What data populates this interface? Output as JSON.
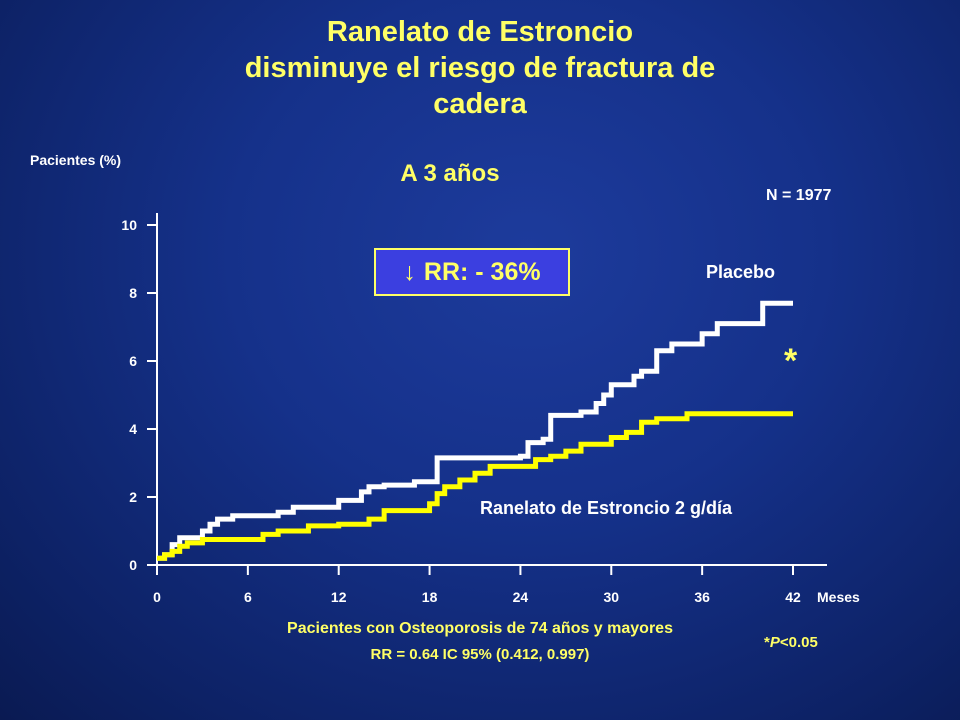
{
  "slide": {
    "title_lines": [
      "Ranelato de Estroncio",
      "disminuye el riesgo de fractura de",
      "cadera"
    ],
    "subtitle": "A 3 años",
    "n_label": "N = 1977",
    "rr_box": {
      "arrow": "↓",
      "text": "RR: - 36%"
    },
    "footer_line1": "Pacientes con Osteoporosis de 74 años y mayores",
    "footer_line2": "RR = 0.64   IC 95% (0.412, 0.997)",
    "pvalue_star": "*",
    "pvalue_p": "P",
    "pvalue_rest": "<0.05"
  },
  "chart_data": {
    "type": "line",
    "xlabel": "Meses",
    "ylabel": "Pacientes (%)",
    "xlim": [
      0,
      42
    ],
    "ylim": [
      0,
      10
    ],
    "xticks": [
      0,
      6,
      12,
      18,
      24,
      30,
      36,
      42
    ],
    "yticks": [
      0,
      2,
      4,
      6,
      8,
      10
    ],
    "significance_marker": "*",
    "colors": {
      "placebo": "#ffffff",
      "ranelato": "#ffff00",
      "text_yellow": "#ffff66"
    },
    "series": [
      {
        "name": "Placebo",
        "step": true,
        "x": [
          0,
          0.5,
          1,
          1.5,
          2,
          3,
          3.5,
          4,
          5,
          6,
          8,
          9,
          12,
          13.5,
          14,
          15,
          17,
          18.5,
          24,
          24.5,
          25.5,
          26,
          28,
          29,
          29.5,
          30,
          31.5,
          32,
          33,
          34,
          36,
          37,
          38,
          40,
          42
        ],
        "y": [
          0.2,
          0.3,
          0.6,
          0.8,
          0.8,
          1.0,
          1.2,
          1.35,
          1.45,
          1.45,
          1.55,
          1.7,
          1.9,
          2.15,
          2.3,
          2.35,
          2.45,
          3.15,
          3.2,
          3.6,
          3.7,
          4.4,
          4.5,
          4.75,
          5.0,
          5.3,
          5.55,
          5.7,
          6.3,
          6.5,
          6.8,
          7.1,
          7.1,
          7.7,
          7.7
        ]
      },
      {
        "name": "Ranelato de Estroncio 2 g/día",
        "step": true,
        "x": [
          0,
          0.5,
          1,
          1.5,
          2,
          3,
          6,
          7,
          8,
          10,
          12,
          14,
          15,
          17,
          18,
          18.5,
          19,
          20,
          21,
          22,
          24,
          25,
          26,
          27,
          28,
          30,
          31,
          32,
          33,
          35,
          42
        ],
        "y": [
          0.2,
          0.3,
          0.4,
          0.55,
          0.65,
          0.75,
          0.75,
          0.9,
          1.0,
          1.15,
          1.2,
          1.35,
          1.6,
          1.6,
          1.8,
          2.1,
          2.3,
          2.5,
          2.7,
          2.9,
          2.9,
          3.1,
          3.2,
          3.35,
          3.55,
          3.75,
          3.9,
          4.2,
          4.3,
          4.45,
          4.45
        ]
      }
    ]
  }
}
